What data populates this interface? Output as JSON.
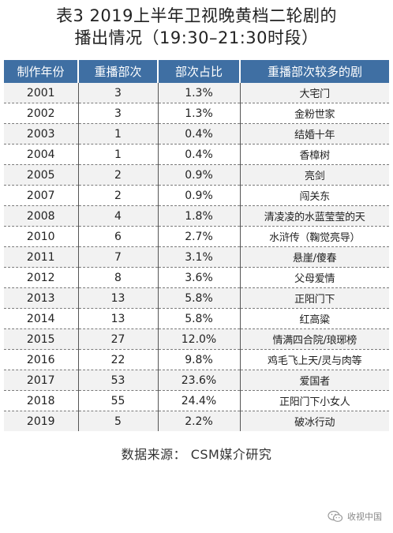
{
  "title": {
    "line1": "表3 2019上半年卫视晚黄档二轮剧的",
    "line2": "播出情况（19:30–21:30时段）"
  },
  "table": {
    "headers": [
      "制作年份",
      "重播部次",
      "部次占比",
      "重播部次较多的剧"
    ],
    "rows": [
      [
        "2001",
        "3",
        "1.3%",
        "大宅门"
      ],
      [
        "2002",
        "3",
        "1.3%",
        "金粉世家"
      ],
      [
        "2003",
        "1",
        "0.4%",
        "结婚十年"
      ],
      [
        "2004",
        "1",
        "0.4%",
        "香樟树"
      ],
      [
        "2005",
        "2",
        "0.9%",
        "亮剑"
      ],
      [
        "2007",
        "2",
        "0.9%",
        "闯关东"
      ],
      [
        "2008",
        "4",
        "1.8%",
        "清凌凌的水蓝莹莹的天"
      ],
      [
        "2010",
        "6",
        "2.7%",
        "水浒传（鞠觉亮导）"
      ],
      [
        "2011",
        "7",
        "3.1%",
        "悬崖/傻春"
      ],
      [
        "2012",
        "8",
        "3.6%",
        "父母爱情"
      ],
      [
        "2013",
        "13",
        "5.8%",
        "正阳门下"
      ],
      [
        "2014",
        "13",
        "5.8%",
        "红高粱"
      ],
      [
        "2015",
        "27",
        "12.0%",
        "情满四合院/琅琊榜"
      ],
      [
        "2016",
        "22",
        "9.8%",
        "鸡毛飞上天/灵与肉等"
      ],
      [
        "2017",
        "53",
        "23.6%",
        "爱国者"
      ],
      [
        "2018",
        "55",
        "24.4%",
        "正阳门下小女人"
      ],
      [
        "2019",
        "5",
        "2.2%",
        "破冰行动"
      ]
    ]
  },
  "source": "数据来源： CSM媒介研究",
  "watermark": {
    "icon": "wechat-icon",
    "text": "收视中国"
  },
  "colors": {
    "header_bg": "#3f6fa3",
    "stripe_bg": "#f2f2f2"
  }
}
